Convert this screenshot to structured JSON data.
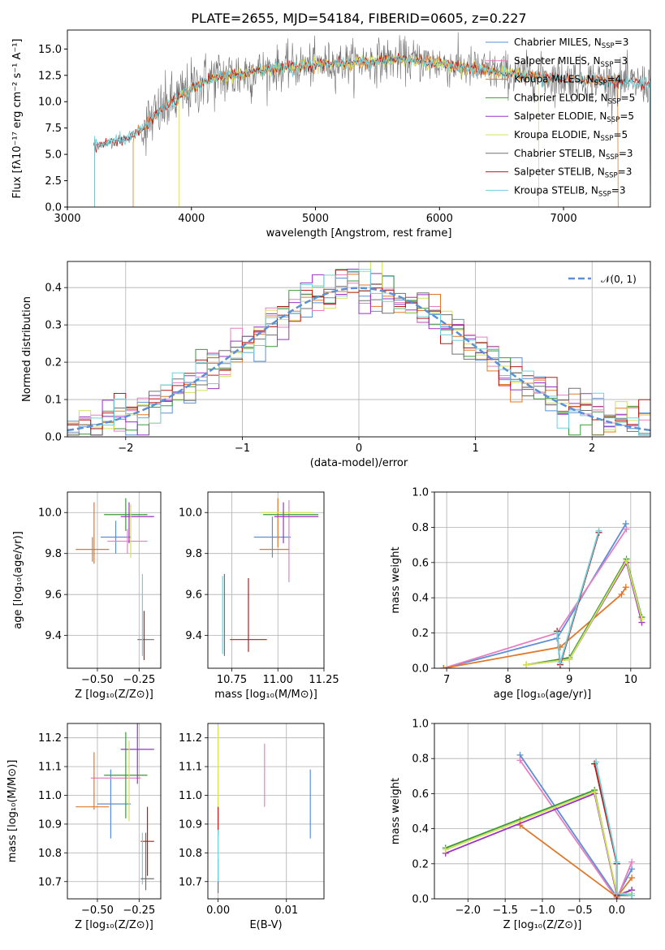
{
  "figure": {
    "title": "PLATE=2655, MJD=54184, FIBERID=0605, z=0.227"
  },
  "colors": {
    "chabrier_miles": "#5b8fd6",
    "salpeter_miles": "#e57fc2",
    "kroupa_miles": "#e0782a",
    "chabrier_elodie": "#3a9a3a",
    "salpeter_elodie": "#9a32c8",
    "kroupa_elodie": "#d4e157",
    "chabrier_stelib": "#707070",
    "salpeter_stelib": "#b71c1c",
    "kroupa_stelib": "#6fd1db",
    "gaussian": "#5b8fd6",
    "grid": "#b0b0b0"
  },
  "chart_data": [
    {
      "id": "spectrum",
      "type": "line",
      "xlabel": "wavelength [Angstrom, rest frame]",
      "ylabel": "Flux [fλ10⁻¹⁷ erg cm⁻² s⁻¹ A⁻¹]",
      "xlim": [
        3000,
        7700
      ],
      "ylim": [
        0,
        16.8
      ],
      "xticks": [
        "3000",
        "4000",
        "5000",
        "6000",
        "7000"
      ],
      "yticks": [
        "0.0",
        "2.5",
        "5.0",
        "7.5",
        "10.0",
        "12.5",
        "15.0"
      ],
      "legend_position": "top-right",
      "series": [
        {
          "name": "Chabrier MILES, N_SSP=3",
          "color_key": "chabrier_miles"
        },
        {
          "name": "Salpeter MILES, N_SSP=3",
          "color_key": "salpeter_miles"
        },
        {
          "name": "Kroupa MILES, N_SSP=4",
          "color_key": "kroupa_miles"
        },
        {
          "name": "Chabrier ELODIE, N_SSP=5",
          "color_key": "chabrier_elodie"
        },
        {
          "name": "Salpeter ELODIE, N_SSP=5",
          "color_key": "salpeter_elodie"
        },
        {
          "name": "Kroupa ELODIE, N_SSP=5",
          "color_key": "kroupa_elodie"
        },
        {
          "name": "Chabrier STELIB, N_SSP=3",
          "color_key": "chabrier_stelib"
        },
        {
          "name": "Salpeter STELIB, N_SSP=3",
          "color_key": "salpeter_stelib"
        },
        {
          "name": "Kroupa STELIB, N_SSP=3",
          "color_key": "kroupa_stelib"
        }
      ],
      "continuum": [
        [
          3220,
          5.9
        ],
        [
          3300,
          6.0
        ],
        [
          3400,
          6.3
        ],
        [
          3500,
          6.6
        ],
        [
          3600,
          7.3
        ],
        [
          3700,
          8.6
        ],
        [
          3800,
          9.6
        ],
        [
          3900,
          10.4
        ],
        [
          4000,
          11.2
        ],
        [
          4100,
          11.9
        ],
        [
          4200,
          12.3
        ],
        [
          4300,
          12.4
        ],
        [
          4400,
          12.6
        ],
        [
          4500,
          12.9
        ],
        [
          4700,
          13.2
        ],
        [
          4900,
          13.4
        ],
        [
          5100,
          13.6
        ],
        [
          5300,
          13.7
        ],
        [
          5500,
          13.9
        ],
        [
          5700,
          14.0
        ],
        [
          5900,
          13.8
        ],
        [
          6100,
          13.4
        ],
        [
          6300,
          13.1
        ],
        [
          6500,
          12.8
        ],
        [
          6700,
          12.5
        ],
        [
          6900,
          12.3
        ],
        [
          7100,
          12.1
        ],
        [
          7300,
          12.0
        ],
        [
          7500,
          11.8
        ],
        [
          7700,
          11.6
        ]
      ],
      "data_range": [
        3210,
        7700
      ],
      "model_ranges": {
        "miles": [
          3530,
          7440
        ],
        "elodie": [
          3900,
          6800
        ],
        "stelib": [
          3220,
          7700
        ]
      }
    },
    {
      "id": "residuals",
      "type": "histogram",
      "xlabel": "(data-model)/error",
      "ylabel": "Normed distribution",
      "xlim": [
        -2.5,
        2.5
      ],
      "ylim": [
        0,
        0.47
      ],
      "xticks": [
        "−2",
        "−1",
        "0",
        "1",
        "2"
      ],
      "yticks": [
        "0.0",
        "0.1",
        "0.2",
        "0.3",
        "0.4"
      ],
      "legend_position": "top-right",
      "gaussian_label": "𝒩(0, 1)",
      "bin_width": 0.1
    },
    {
      "id": "age_vs_Z",
      "type": "errorbar",
      "xlabel": "Z [log₁₀(Z/Z⊙)]",
      "ylabel": "age  [log₁₀(age/yr)]",
      "xlim": [
        -0.68,
        -0.12
      ],
      "ylim": [
        9.24,
        10.1
      ],
      "xticks": [
        [
          "−0.50",
          -0.5
        ],
        [
          "−0.25",
          -0.25
        ]
      ],
      "yticks": [
        [
          "9.4",
          9.4
        ],
        [
          "9.6",
          9.6
        ],
        [
          "9.8",
          9.8
        ],
        [
          "10.0",
          10.0
        ]
      ],
      "points": [
        {
          "c": "chabrier_miles",
          "x": -0.39,
          "xe": 0.09,
          "y": 9.88,
          "ye": 0.08
        },
        {
          "c": "salpeter_miles",
          "x": -0.32,
          "xe": 0.12,
          "y": 9.86,
          "ye": 0.06
        },
        {
          "c": "kroupa_miles",
          "x": -0.53,
          "xe": 0.1,
          "y": 9.82,
          "ye": 0.06
        },
        {
          "c": "kroupa_miles",
          "x": -0.52,
          "xe": 0.0,
          "y": 9.9,
          "ye": 0.15
        },
        {
          "c": "chabrier_elodie",
          "x": -0.33,
          "xe": 0.13,
          "y": 9.99,
          "ye": 0.08
        },
        {
          "c": "salpeter_elodie",
          "x": -0.26,
          "xe": 0.1,
          "y": 9.98,
          "ye": 0.0
        },
        {
          "c": "kroupa_elodie",
          "x": -0.3,
          "xe": 0.0,
          "y": 9.91,
          "ye": 0.13
        },
        {
          "c": "chabrier_stelib",
          "x": -0.21,
          "xe": 0.05,
          "y": 9.38,
          "ye": 0.0
        },
        {
          "c": "salpeter_stelib",
          "x": -0.22,
          "xe": 0.0,
          "y": 9.4,
          "ye": 0.12
        },
        {
          "c": "kroupa_stelib",
          "x": -0.23,
          "xe": 0.0,
          "y": 9.5,
          "ye": 0.2
        },
        {
          "c": "salpeter_elodie",
          "x": -0.31,
          "xe": 0.0,
          "y": 9.95,
          "ye": 0.1
        }
      ]
    },
    {
      "id": "age_vs_mass",
      "type": "errorbar",
      "xlabel": "mass [log₁₀(M/M⊙)]",
      "ylabel": "",
      "xlim": [
        10.62,
        11.25
      ],
      "ylim": [
        9.24,
        10.1
      ],
      "xticks": [
        [
          "10.75",
          10.75
        ],
        [
          "11.00",
          11.0
        ],
        [
          "11.25",
          11.25
        ]
      ],
      "yticks": [
        [
          "9.4",
          9.4
        ],
        [
          "9.6",
          9.6
        ],
        [
          "9.8",
          9.8
        ],
        [
          "10.0",
          10.0
        ]
      ],
      "points": [
        {
          "c": "chabrier_miles",
          "x": 10.97,
          "xe": 0.1,
          "y": 9.88,
          "ye": 0.1
        },
        {
          "c": "salpeter_miles",
          "x": 11.06,
          "xe": 0.0,
          "y": 9.86,
          "ye": 0.2
        },
        {
          "c": "kroupa_miles",
          "x": 10.98,
          "xe": 0.08,
          "y": 9.82,
          "ye": 0.0
        },
        {
          "c": "kroupa_miles",
          "x": 11.0,
          "xe": 0.0,
          "y": 9.95,
          "ye": 0.12
        },
        {
          "c": "chabrier_elodie",
          "x": 11.07,
          "xe": 0.15,
          "y": 9.99,
          "ye": 0.0
        },
        {
          "c": "salpeter_elodie",
          "x": 11.1,
          "xe": 0.12,
          "y": 9.98,
          "ye": 0.0
        },
        {
          "c": "kroupa_elodie",
          "x": 11.05,
          "xe": 0.14,
          "y": 10.0,
          "ye": 0.0
        },
        {
          "c": "chabrier_stelib",
          "x": 10.71,
          "xe": 0.0,
          "y": 9.5,
          "ye": 0.2
        },
        {
          "c": "salpeter_stelib",
          "x": 10.84,
          "xe": 0.1,
          "y": 9.38,
          "ye": 0.0
        },
        {
          "c": "salpeter_stelib",
          "x": 10.84,
          "xe": 0.0,
          "y": 9.5,
          "ye": 0.18
        },
        {
          "c": "kroupa_stelib",
          "x": 10.7,
          "xe": 0.0,
          "y": 9.5,
          "ye": 0.19
        },
        {
          "c": "salpeter_elodie",
          "x": 11.03,
          "xe": 0.0,
          "y": 9.95,
          "ye": 0.1
        }
      ]
    },
    {
      "id": "mass_vs_Z",
      "type": "errorbar",
      "xlabel": "Z [log₁₀(Z/Z⊙)]",
      "ylabel": "mass [log₁₀(M/M⊙)]",
      "xlim": [
        -0.68,
        -0.12
      ],
      "ylim": [
        10.64,
        11.25
      ],
      "xticks": [
        [
          "−0.50",
          -0.5
        ],
        [
          "−0.25",
          -0.25
        ]
      ],
      "yticks": [
        [
          "10.7",
          10.7
        ],
        [
          "10.8",
          10.8
        ],
        [
          "10.9",
          10.9
        ],
        [
          "11.0",
          11.0
        ],
        [
          "11.1",
          11.1
        ],
        [
          "11.2",
          11.2
        ]
      ],
      "points": [
        {
          "c": "chabrier_miles",
          "x": -0.42,
          "xe": 0.0,
          "y": 10.97,
          "ye": 0.12
        },
        {
          "c": "chabrier_miles",
          "x": -0.4,
          "xe": 0.1,
          "y": 10.97,
          "ye": 0.0
        },
        {
          "c": "salpeter_miles",
          "x": -0.39,
          "xe": 0.15,
          "y": 11.06,
          "ye": 0.0
        },
        {
          "c": "kroupa_miles",
          "x": -0.53,
          "xe": 0.1,
          "y": 10.96,
          "ye": 0.0
        },
        {
          "c": "kroupa_miles",
          "x": -0.52,
          "xe": 0.0,
          "y": 11.05,
          "ye": 0.1
        },
        {
          "c": "chabrier_elodie",
          "x": -0.33,
          "xe": 0.13,
          "y": 11.07,
          "ye": 0.15
        },
        {
          "c": "salpeter_elodie",
          "x": -0.26,
          "xe": 0.1,
          "y": 11.16,
          "ye": 0.12
        },
        {
          "c": "kroupa_elodie",
          "x": -0.31,
          "xe": 0.0,
          "y": 11.05,
          "ye": 0.14
        },
        {
          "c": "chabrier_stelib",
          "x": -0.21,
          "xe": 0.0,
          "y": 10.77,
          "ye": 0.1
        },
        {
          "c": "salpeter_stelib",
          "x": -0.2,
          "xe": 0.04,
          "y": 10.84,
          "ye": 0.12
        },
        {
          "c": "kroupa_stelib",
          "x": -0.23,
          "xe": 0.0,
          "y": 10.78,
          "ye": 0.09
        },
        {
          "c": "chabrier_stelib",
          "x": -0.2,
          "xe": 0.04,
          "y": 10.71,
          "ye": 0.0
        }
      ]
    },
    {
      "id": "mass_vs_ebv",
      "type": "errorbar",
      "xlabel": "E(B-V)",
      "ylabel": "",
      "xlim": [
        -0.0015,
        0.0155
      ],
      "ylim": [
        10.64,
        11.25
      ],
      "xticks": [
        [
          "0.00",
          0.0
        ],
        [
          "0.01",
          0.01
        ]
      ],
      "yticks": [
        [
          "10.7",
          10.7
        ],
        [
          "10.8",
          10.8
        ],
        [
          "10.9",
          10.9
        ],
        [
          "11.0",
          11.0
        ],
        [
          "11.1",
          11.1
        ],
        [
          "11.2",
          11.2
        ]
      ],
      "points": [
        {
          "c": "chabrier_miles",
          "x": 0.0135,
          "xe": 0.0,
          "y": 10.97,
          "ye": 0.12
        },
        {
          "c": "salpeter_miles",
          "x": 0.0068,
          "xe": 0.0,
          "y": 11.07,
          "ye": 0.11
        },
        {
          "c": "kroupa_elodie",
          "x": 0.0,
          "xe": 0.0,
          "y": 11.08,
          "ye": 0.16
        },
        {
          "c": "salpeter_stelib",
          "x": 0.0,
          "xe": 0.0,
          "y": 10.91,
          "ye": 0.05
        },
        {
          "c": "chabrier_stelib",
          "x": 0.0,
          "xe": 0.0,
          "y": 10.72,
          "ye": 0.06
        },
        {
          "c": "kroupa_stelib",
          "x": 0.0,
          "xe": 0.0,
          "y": 10.79,
          "ye": 0.09
        }
      ]
    },
    {
      "id": "weight_vs_age",
      "type": "line",
      "xlabel": "age  [log₁₀(age/yr)]",
      "ylabel": "mass weight",
      "xlim": [
        6.8,
        10.32
      ],
      "ylim": [
        0,
        1.0
      ],
      "xticks": [
        [
          "7",
          7
        ],
        [
          "8",
          8
        ],
        [
          "9",
          9
        ],
        [
          "10",
          10
        ]
      ],
      "yticks": [
        [
          "0.0",
          0.0
        ],
        [
          "0.2",
          0.2
        ],
        [
          "0.4",
          0.4
        ],
        [
          "0.6",
          0.6
        ],
        [
          "0.8",
          0.8
        ],
        [
          "1.0",
          1.0
        ]
      ],
      "series": [
        {
          "c": "chabrier_miles",
          "x": [
            6.95,
            8.8,
            9.92
          ],
          "y": [
            0.0,
            0.17,
            0.82
          ]
        },
        {
          "c": "salpeter_miles",
          "x": [
            6.95,
            8.8,
            9.93
          ],
          "y": [
            0.0,
            0.2,
            0.79
          ]
        },
        {
          "c": "kroupa_miles",
          "x": [
            6.95,
            8.85,
            9.85,
            9.92
          ],
          "y": [
            0.0,
            0.12,
            0.42,
            0.46
          ]
        },
        {
          "c": "chabrier_elodie",
          "x": [
            8.3,
            9.0,
            9.93,
            10.18
          ],
          "y": [
            0.02,
            0.06,
            0.62,
            0.29
          ]
        },
        {
          "c": "salpeter_elodie",
          "x": [
            8.3,
            9.0,
            9.93,
            10.18
          ],
          "y": [
            0.02,
            0.05,
            0.6,
            0.26
          ]
        },
        {
          "c": "kroupa_elodie",
          "x": [
            8.3,
            9.0,
            9.93,
            10.18
          ],
          "y": [
            0.02,
            0.05,
            0.61,
            0.28
          ]
        },
        {
          "c": "chabrier_stelib",
          "x": [
            8.8,
            8.85,
            9.48
          ],
          "y": [
            0.21,
            0.02,
            0.77
          ]
        },
        {
          "c": "salpeter_stelib",
          "x": [
            8.8,
            8.85,
            9.48
          ],
          "y": [
            0.21,
            0.02,
            0.77
          ]
        },
        {
          "c": "kroupa_stelib",
          "x": [
            8.8,
            8.85,
            9.48
          ],
          "y": [
            0.2,
            0.03,
            0.78
          ]
        }
      ]
    },
    {
      "id": "weight_vs_Z",
      "type": "line",
      "xlabel": "Z [log₁₀(Z/Z⊙)]",
      "ylabel": "mass weight",
      "xlim": [
        -2.45,
        0.45
      ],
      "ylim": [
        0,
        1.0
      ],
      "xticks": [
        [
          "−2.0",
          -2.0
        ],
        [
          "−1.5",
          -1.5
        ],
        [
          "−1.0",
          -1.0
        ],
        [
          "−0.5",
          -0.5
        ],
        [
          "0.0",
          0.0
        ]
      ],
      "yticks": [
        [
          "0.0",
          0.0
        ],
        [
          "0.2",
          0.2
        ],
        [
          "0.4",
          0.4
        ],
        [
          "0.6",
          0.6
        ],
        [
          "0.8",
          0.8
        ],
        [
          "1.0",
          1.0
        ]
      ],
      "series": [
        {
          "c": "chabrier_miles",
          "x": [
            -1.3,
            0.0,
            0.2
          ],
          "y": [
            0.82,
            0.01,
            0.17
          ]
        },
        {
          "c": "salpeter_miles",
          "x": [
            -1.3,
            0.0,
            0.2
          ],
          "y": [
            0.79,
            0.0,
            0.21
          ]
        },
        {
          "c": "kroupa_miles",
          "x": [
            -1.3,
            -1.3,
            0.0,
            0.2
          ],
          "y": [
            0.45,
            0.42,
            0.01,
            0.12
          ]
        },
        {
          "c": "chabrier_elodie",
          "x": [
            -2.3,
            -0.3,
            0.0,
            0.2
          ],
          "y": [
            0.29,
            0.62,
            0.02,
            0.05
          ]
        },
        {
          "c": "salpeter_elodie",
          "x": [
            -2.3,
            -0.3,
            0.0,
            0.2
          ],
          "y": [
            0.26,
            0.6,
            0.02,
            0.05
          ]
        },
        {
          "c": "kroupa_elodie",
          "x": [
            -2.3,
            -0.3,
            0.0,
            0.2
          ],
          "y": [
            0.28,
            0.61,
            0.03,
            0.03
          ]
        },
        {
          "c": "chabrier_stelib",
          "x": [
            -0.3,
            0.0,
            0.0,
            0.2
          ],
          "y": [
            0.77,
            0.2,
            0.02,
            0.02
          ]
        },
        {
          "c": "salpeter_stelib",
          "x": [
            -0.3,
            0.0,
            0.0
          ],
          "y": [
            0.77,
            0.2,
            0.02
          ]
        },
        {
          "c": "kroupa_stelib",
          "x": [
            -0.28,
            0.0,
            0.0,
            0.2
          ],
          "y": [
            0.78,
            0.21,
            0.03,
            0.02
          ]
        }
      ]
    }
  ]
}
